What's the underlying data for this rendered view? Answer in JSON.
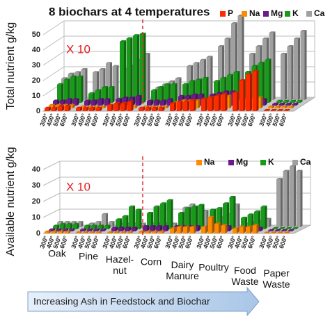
{
  "chart_data": [
    {
      "type": "bar3d",
      "title": "8 biochars at 4 temperatures",
      "y_label": "Total nutrient  g/kg",
      "annotation": "X 10",
      "arrow_text": "Increasing Ash in Feedstock and Biochar",
      "categories": [
        "300°",
        "400°",
        "500°",
        "600°",
        "300°",
        "400°",
        "500°",
        "600°",
        "300°",
        "400°",
        "500°",
        "600°",
        "300°",
        "400°",
        "500°",
        "600°",
        "300°",
        "400°",
        "500°",
        "600°",
        "300°",
        "400°",
        "500°",
        "600°",
        "300°",
        "400°",
        "500°",
        "600°",
        "300°",
        "400°",
        "500°",
        "600°"
      ],
      "ylim": [
        0,
        50
      ],
      "yticks": [
        0,
        10,
        20,
        30,
        40,
        50
      ],
      "grid": true,
      "series": [
        {
          "name": "P",
          "color": "#ff2a00",
          "values": [
            2,
            2,
            3,
            3,
            2,
            2,
            2,
            2,
            4,
            5,
            5,
            6,
            2,
            2,
            2,
            2,
            5,
            6,
            6,
            7,
            8,
            9,
            10,
            11,
            12,
            20,
            24,
            26,
            0.5,
            0.5,
            0.5,
            0.5
          ]
        },
        {
          "name": "Na",
          "color": "#ff8c00",
          "values": [
            2,
            2,
            2,
            2,
            1,
            1,
            1,
            1,
            1,
            1,
            1,
            1,
            1,
            1,
            1,
            1,
            4,
            5,
            5,
            5,
            6,
            7,
            8,
            8,
            5,
            6,
            6,
            7,
            1,
            1,
            1,
            1
          ]
        },
        {
          "name": "Mg",
          "color": "#6a1a8a",
          "values": [
            3,
            3,
            4,
            4,
            3,
            3,
            4,
            4,
            4,
            5,
            5,
            6,
            3,
            3,
            3,
            4,
            6,
            6,
            7,
            7,
            7,
            8,
            9,
            9,
            3,
            3,
            4,
            4,
            1,
            1,
            1,
            1
          ]
        },
        {
          "name": "K",
          "color": "#1a9a1a",
          "values": [
            12,
            15,
            17,
            17,
            6,
            8,
            10,
            10,
            40,
            42,
            44,
            45,
            8,
            10,
            12,
            12,
            12,
            14,
            15,
            16,
            14,
            16,
            18,
            20,
            20,
            24,
            26,
            28,
            1,
            1,
            1,
            1
          ]
        },
        {
          "name": "Ca",
          "color": "#a0a0a0",
          "values": [
            14,
            17,
            18,
            20,
            18,
            20,
            24,
            22,
            20,
            22,
            26,
            30,
            8,
            10,
            12,
            14,
            22,
            24,
            26,
            28,
            35,
            40,
            50,
            55,
            30,
            35,
            40,
            44,
            30,
            35,
            40,
            45
          ]
        }
      ]
    },
    {
      "type": "bar3d",
      "y_label": "Available nutrient g/kg",
      "annotation": "X 10",
      "groups": [
        "Oak",
        "Pine",
        "Hazel-\nnut",
        "Corn",
        "Dairy\nManure",
        "Poultry",
        "Food\nWaste",
        "Paper\nWaste"
      ],
      "categories": [
        "300°",
        "400°",
        "500°",
        "600°",
        "300°",
        "400°",
        "500°",
        "600°",
        "300°",
        "400°",
        "500°",
        "600°",
        "300°",
        "400°",
        "500°",
        "600°",
        "300°",
        "400°",
        "500°",
        "600°",
        "300°",
        "400°",
        "500°",
        "600°",
        "300°",
        "400°",
        "500°",
        "600°",
        "300°",
        "400°",
        "500°",
        "600°"
      ],
      "ylim": [
        0,
        40
      ],
      "yticks": [
        0,
        10,
        20,
        30,
        40
      ],
      "grid": true,
      "series": [
        {
          "name": "Na",
          "color": "#ff8c00",
          "values": [
            1,
            1,
            1,
            1,
            0.5,
            0.5,
            0.5,
            0.5,
            0.5,
            0.5,
            0.5,
            0.5,
            1,
            1,
            1,
            1,
            3,
            4,
            4,
            4,
            4,
            10,
            6,
            5,
            3,
            4,
            4,
            5,
            0.3,
            0.3,
            0.3,
            0.3
          ]
        },
        {
          "name": "Mg",
          "color": "#6a1a8a",
          "values": [
            1,
            1,
            1,
            1,
            1,
            1,
            1,
            1,
            2,
            2,
            2,
            2,
            3,
            3,
            3,
            3,
            3,
            3,
            3,
            3,
            3,
            3,
            3,
            3,
            2,
            2,
            2,
            2,
            0.5,
            0.5,
            0.5,
            0.5
          ]
        },
        {
          "name": "K",
          "color": "#1a9a1a",
          "values": [
            2,
            3,
            3,
            3,
            2,
            2,
            2,
            2,
            6,
            8,
            14,
            12,
            10,
            14,
            16,
            18,
            10,
            13,
            14,
            15,
            12,
            13,
            16,
            20,
            7,
            9,
            11,
            14,
            0.5,
            0.5,
            0.5,
            0.5
          ]
        },
        {
          "name": "Ca",
          "color": "#a0a0a0",
          "values": [
            3,
            3,
            3,
            3,
            2,
            3,
            8,
            3,
            2,
            2,
            2,
            2,
            2,
            2,
            2,
            2,
            12,
            14,
            12,
            10,
            3,
            6,
            8,
            14,
            2,
            3,
            4,
            5,
            30,
            35,
            38,
            35
          ]
        }
      ]
    }
  ]
}
